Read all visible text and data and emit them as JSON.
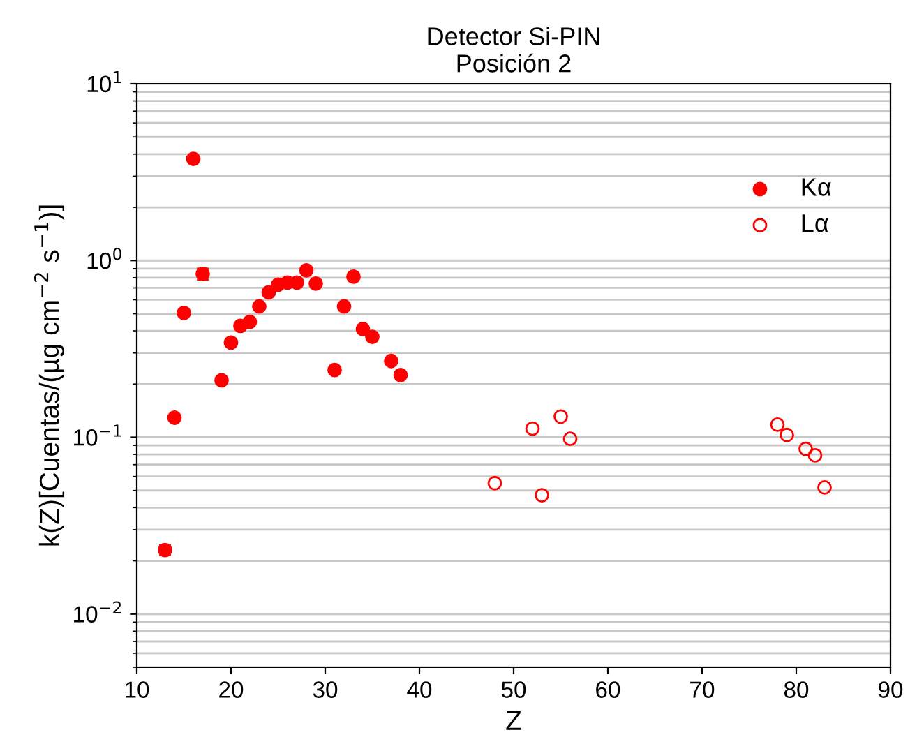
{
  "chart_data": {
    "type": "scatter",
    "title": "Detector Si-PIN\nPosición 2",
    "xlabel": "Z",
    "ylabel": "k(Z)[Cuentas/(µg cm$^{−2}$ s$^{−1}$)]",
    "log": "y",
    "xlim": [
      10,
      90
    ],
    "xticks": [
      10,
      20,
      30,
      40,
      50,
      60,
      70,
      80,
      90
    ],
    "ylim": [
      0.005,
      10
    ],
    "yticks": [
      {
        "value": 0.01,
        "label": "10$^{−2}$"
      },
      {
        "value": 0.1,
        "label": "10$^{−1}$"
      },
      {
        "value": 1,
        "label": "10$^{0}$"
      },
      {
        "value": 10,
        "label": "10$^{1}$"
      }
    ],
    "grid": "y",
    "legend": "top right",
    "marker": "circle",
    "series": [
      {
        "name": "Kα",
        "color": "#ff0000",
        "x": [
          13,
          14,
          15,
          16,
          17,
          19,
          20,
          21,
          22,
          23,
          24,
          25,
          26,
          27,
          28,
          29,
          31,
          32,
          33,
          34,
          35,
          37,
          38
        ],
        "values": [
          0.023,
          0.129,
          0.505,
          3.76,
          0.84,
          0.21,
          0.343,
          0.427,
          0.45,
          0.55,
          0.66,
          0.73,
          0.75,
          0.75,
          0.88,
          0.74,
          0.24,
          0.55,
          0.81,
          0.41,
          0.37,
          0.27,
          0.225
        ],
        "errors": [
          0.0015,
          null,
          null,
          null,
          0.06,
          null,
          null,
          null,
          null,
          null,
          null,
          null,
          null,
          null,
          null,
          null,
          null,
          null,
          null,
          null,
          null,
          null,
          null
        ]
      },
      {
        "name": "Lα",
        "color": "#ff0000",
        "x": [
          48,
          52,
          53,
          55,
          56,
          78,
          79,
          81,
          82,
          83
        ],
        "values": [
          0.055,
          0.112,
          0.047,
          0.131,
          0.098,
          0.118,
          0.103,
          0.086,
          0.079,
          0.052
        ]
      }
    ]
  }
}
